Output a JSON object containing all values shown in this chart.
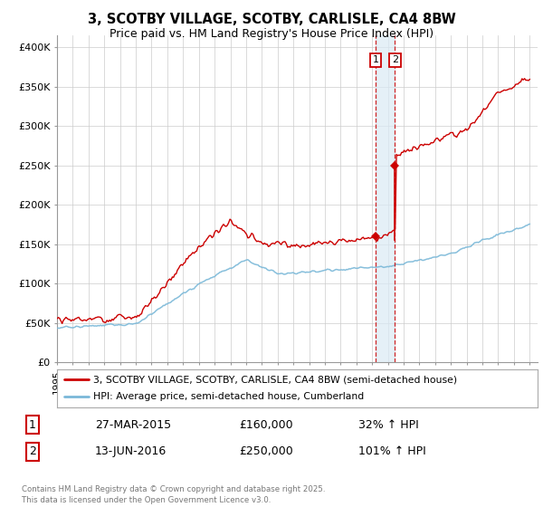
{
  "title": "3, SCOTBY VILLAGE, SCOTBY, CARLISLE, CA4 8BW",
  "subtitle": "Price paid vs. HM Land Registry's House Price Index (HPI)",
  "title_fontsize": 10.5,
  "subtitle_fontsize": 9,
  "yticks": [
    0,
    50000,
    100000,
    150000,
    200000,
    250000,
    300000,
    350000,
    400000
  ],
  "ytick_labels": [
    "£0",
    "£50K",
    "£100K",
    "£150K",
    "£200K",
    "£250K",
    "£300K",
    "£350K",
    "£400K"
  ],
  "xlim_start": 1995.0,
  "xlim_end": 2025.5,
  "ylim_min": 0,
  "ylim_max": 415000,
  "hpi_color": "#7ab8d8",
  "property_color": "#cc0000",
  "vertical_line1_x": 2015.22,
  "vertical_line2_x": 2016.45,
  "point1_y": 160000,
  "point2_y": 250000,
  "legend_property": "3, SCOTBY VILLAGE, SCOTBY, CARLISLE, CA4 8BW (semi-detached house)",
  "legend_hpi": "HPI: Average price, semi-detached house, Cumberland",
  "table_row1": [
    "1",
    "27-MAR-2015",
    "£160,000",
    "32% ↑ HPI"
  ],
  "table_row2": [
    "2",
    "13-JUN-2016",
    "£250,000",
    "101% ↑ HPI"
  ],
  "footnote": "Contains HM Land Registry data © Crown copyright and database right 2025.\nThis data is licensed under the Open Government Licence v3.0.",
  "bg_color": "#ffffff",
  "grid_color": "#cccccc",
  "shade_color": "#daeaf5"
}
